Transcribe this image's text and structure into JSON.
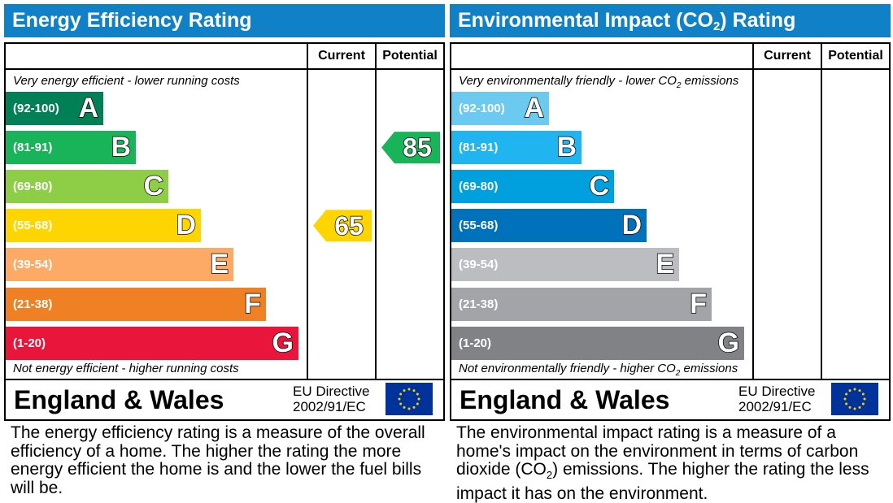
{
  "colors": {
    "header_bg": "#1081c7",
    "ee_bands": [
      "#008054",
      "#19b459",
      "#8dce46",
      "#ffd500",
      "#fcaa65",
      "#ef8023",
      "#e9153b"
    ],
    "ei_bands": [
      "#6ccaf1",
      "#20b4f1",
      "#00a0df",
      "#0072bc",
      "#bbbdc0",
      "#a2a4a7",
      "#808285"
    ]
  },
  "column_current": "Current",
  "column_potential": "Potential",
  "region": "England & Wales",
  "directive_line1": "EU Directive",
  "directive_line2": "2002/91/EC",
  "flag_icon": "eu-flag-icon",
  "bands": [
    {
      "range": "(92-100)",
      "letter": "A"
    },
    {
      "range": "(81-91)",
      "letter": "B"
    },
    {
      "range": "(69-80)",
      "letter": "C"
    },
    {
      "range": "(55-68)",
      "letter": "D"
    },
    {
      "range": "(39-54)",
      "letter": "E"
    },
    {
      "range": "(21-38)",
      "letter": "F"
    },
    {
      "range": "(1-20)",
      "letter": "G"
    }
  ],
  "energy_efficiency": {
    "title": "Energy Efficiency Rating",
    "top_caption": "Very energy efficient - lower running costs",
    "bottom_caption": "Not energy efficient - higher running costs",
    "description": "The energy efficiency rating is a measure of the overall efficiency of a home. The higher the rating the more energy efficient the home is and the lower the fuel bills will be."
  },
  "environmental_impact": {
    "title_pre": "Environmental Impact (CO",
    "title_sub": "2",
    "title_post": ") Rating",
    "top_caption_pre": "Very environmentally friendly - lower CO",
    "top_caption_sub": "2",
    "top_caption_post": " emissions",
    "bottom_caption_pre": "Not environmentally friendly - higher CO",
    "bottom_caption_sub": "2",
    "bottom_caption_post": " emissions",
    "description_pre": "The environmental impact rating is a measure of a home's impact on the environment in terms of carbon dioxide (CO",
    "description_sub": "2",
    "description_post": ") emissions. The higher the rating the less impact it has on the environment."
  },
  "chart_data": [
    {
      "type": "bar",
      "title": "Energy Efficiency Rating",
      "categories": [
        "A",
        "B",
        "C",
        "D",
        "E",
        "F",
        "G"
      ],
      "category_ranges": [
        "(92-100)",
        "(81-91)",
        "(69-80)",
        "(55-68)",
        "(39-54)",
        "(21-38)",
        "(1-20)"
      ],
      "series": [
        {
          "name": "Current",
          "value": 65,
          "band": "D"
        },
        {
          "name": "Potential",
          "value": 85,
          "band": "B"
        }
      ]
    },
    {
      "type": "bar",
      "title": "Environmental Impact (CO2) Rating",
      "categories": [
        "A",
        "B",
        "C",
        "D",
        "E",
        "F",
        "G"
      ],
      "category_ranges": [
        "(92-100)",
        "(81-91)",
        "(69-80)",
        "(55-68)",
        "(39-54)",
        "(21-38)",
        "(1-20)"
      ],
      "series": []
    }
  ]
}
